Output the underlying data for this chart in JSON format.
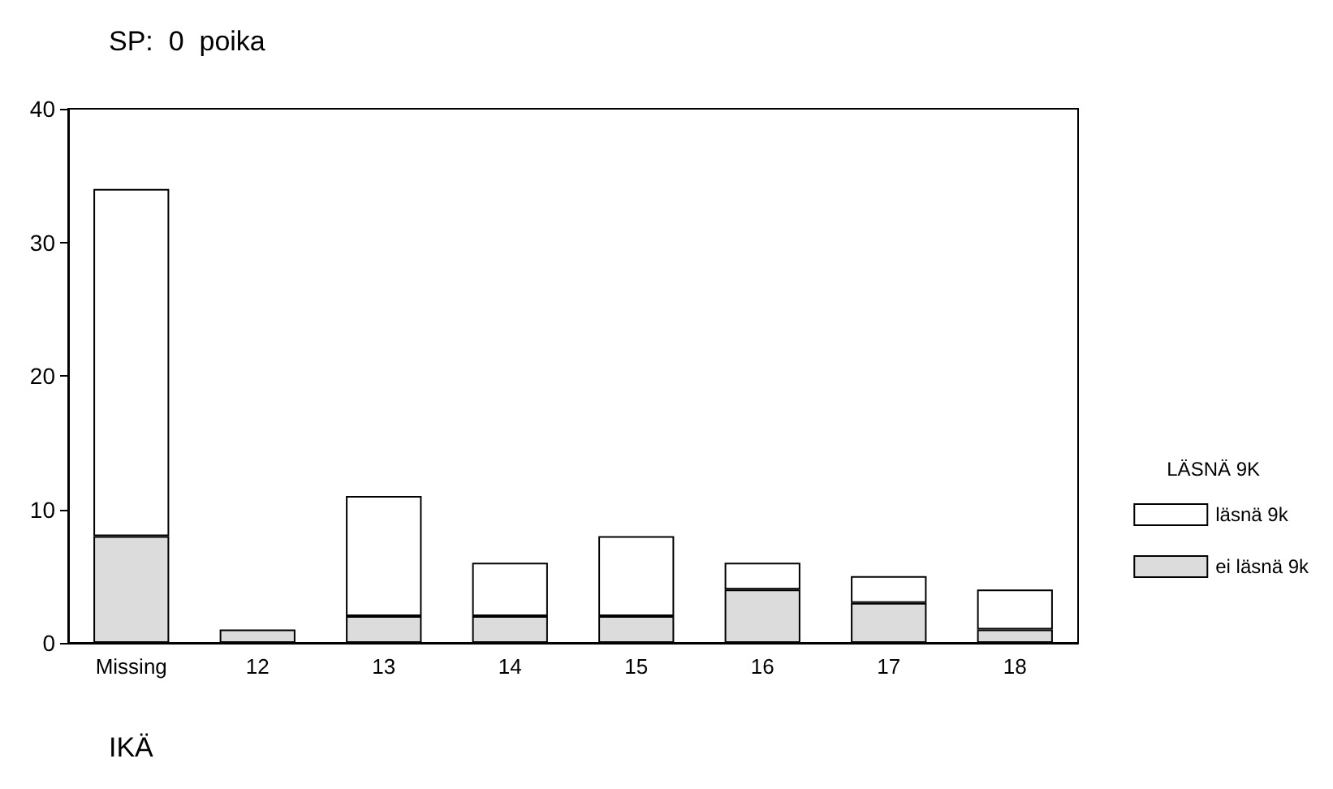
{
  "chart_data": {
    "type": "bar",
    "title": "SP:  0  poika",
    "xlabel": "IKÄ",
    "legend_title": "LÄSNÄ 9K",
    "categories": [
      "Missing",
      "12",
      "13",
      "14",
      "15",
      "16",
      "17",
      "18"
    ],
    "series": [
      {
        "name": "ei läsnä 9k",
        "color": "#dcdcdc",
        "values": [
          8,
          1,
          2,
          2,
          2,
          4,
          3,
          1
        ]
      },
      {
        "name": "läsnä 9k",
        "color": "#ffffff",
        "values": [
          26,
          0,
          9,
          4,
          6,
          2,
          2,
          3
        ]
      }
    ],
    "stacked": true,
    "ylim": [
      0,
      40
    ],
    "yticks": [
      0,
      10,
      20,
      30,
      40
    ],
    "grid": false,
    "legend": "right"
  }
}
